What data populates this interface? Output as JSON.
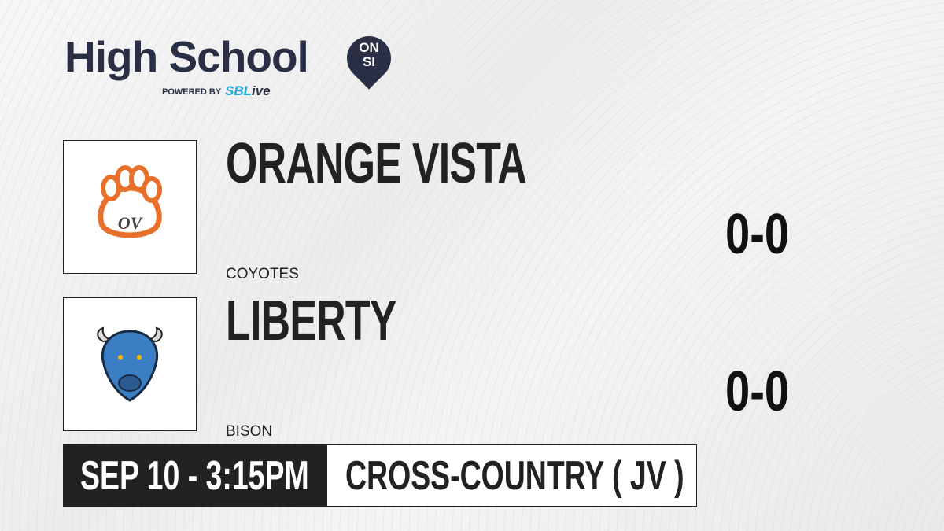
{
  "brand": {
    "title": "High School",
    "badge_top": "ON",
    "badge_bottom": "SI",
    "powered_by": "POWERED BY",
    "partner_prefix": "SBL",
    "partner_suffix": "ive"
  },
  "teams": [
    {
      "name": "ORANGE VISTA",
      "mascot": "COYOTES",
      "score": "0-0",
      "logo": "paw-icon",
      "color": "#e8702a"
    },
    {
      "name": "LIBERTY",
      "mascot": "BISON",
      "score": "0-0",
      "logo": "bison-icon",
      "color": "#3a7fc4"
    }
  ],
  "event": {
    "datetime": "SEP 10 - 3:15PM",
    "sport": "CROSS-COUNTRY ( JV )"
  }
}
